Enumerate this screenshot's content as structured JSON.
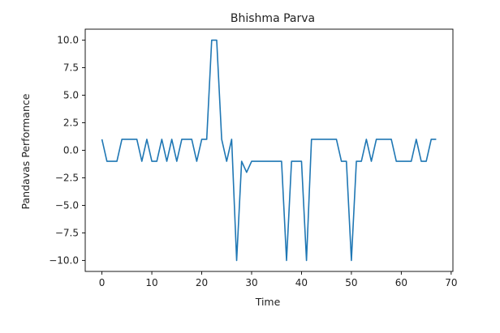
{
  "chart_data": {
    "type": "line",
    "title": "Bhishma Parva",
    "xlabel": "Time",
    "ylabel": "Pandavas Performance",
    "xlim": [
      -3.35,
      70.35
    ],
    "ylim": [
      -11.0,
      11.0
    ],
    "xticks": [
      0,
      10,
      20,
      30,
      40,
      50,
      60,
      70
    ],
    "xtick_labels": [
      "0",
      "10",
      "20",
      "30",
      "40",
      "50",
      "60",
      "70"
    ],
    "yticks": [
      10.0,
      7.5,
      5.0,
      2.5,
      0.0,
      -2.5,
      -5.0,
      -7.5,
      -10.0
    ],
    "ytick_labels": [
      "10.0",
      "7.5",
      "5.0",
      "2.5",
      "0.0",
      "−2.5",
      "−5.0",
      "−7.5",
      "−10.0"
    ],
    "grid": false,
    "series": [
      {
        "color": "#1f77b4",
        "x": [
          0,
          1,
          2,
          3,
          4,
          5,
          6,
          7,
          8,
          9,
          10,
          11,
          12,
          13,
          14,
          15,
          16,
          17,
          18,
          19,
          20,
          21,
          22,
          23,
          24,
          25,
          26,
          27,
          28,
          29,
          30,
          31,
          32,
          33,
          34,
          35,
          36,
          37,
          38,
          39,
          40,
          41,
          42,
          43,
          44,
          45,
          46,
          47,
          48,
          49,
          50,
          51,
          52,
          53,
          54,
          55,
          56,
          57,
          58,
          59,
          60,
          61,
          62,
          63,
          64,
          65,
          66,
          67
        ],
        "values": [
          1,
          -1,
          -1,
          -1,
          1,
          1,
          1,
          1,
          -1,
          1,
          -1,
          -1,
          1,
          -1,
          1,
          -1,
          1,
          1,
          1,
          -1,
          1,
          1,
          10,
          10,
          1,
          -1,
          1,
          -10,
          -1,
          -2,
          -1,
          -1,
          -1,
          -1,
          -1,
          -1,
          -1,
          -10,
          -1,
          -1,
          -1,
          -10,
          1,
          1,
          1,
          1,
          1,
          1,
          -1,
          -1,
          -10,
          -1,
          -1,
          1,
          -1,
          1,
          1,
          1,
          1,
          -1,
          -1,
          -1,
          -1,
          1,
          -1,
          -1,
          1,
          1
        ]
      }
    ]
  }
}
